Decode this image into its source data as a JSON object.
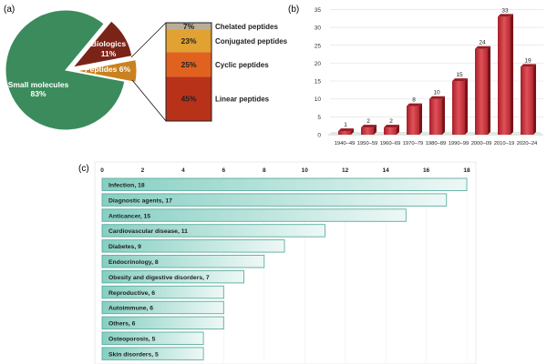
{
  "chart_data": [
    {
      "panel": "(a)",
      "type": "pie",
      "slices": [
        {
          "label": "Small molecules",
          "value": 83,
          "value_label": "83%",
          "color": "#3b8b5c"
        },
        {
          "label": "Biologics",
          "value": 11,
          "value_label": "11%",
          "color": "#7a2418"
        },
        {
          "label": "Peptides",
          "value": 6,
          "value_label": "6%",
          "color": "#c9821f"
        }
      ],
      "breakdown": {
        "type": "stacked-bar",
        "of": "Peptides",
        "segments": [
          {
            "label": "Chelated peptides",
            "value": 7,
            "value_label": "7%",
            "color": "#b9ad97"
          },
          {
            "label": "Conjugated peptides",
            "value": 23,
            "value_label": "23%",
            "color": "#e1a232"
          },
          {
            "label": "Cyclic peptides",
            "value": 25,
            "value_label": "25%",
            "color": "#e1621f"
          },
          {
            "label": "Linear peptides",
            "value": 45,
            "value_label": "45%",
            "color": "#b8321a"
          }
        ]
      }
    },
    {
      "panel": "(b)",
      "type": "bar",
      "categories": [
        "1940–49",
        "1950–59",
        "1960–69",
        "1970–79",
        "1980–89",
        "1990–99",
        "2000–09",
        "2010–19",
        "2020–24"
      ],
      "values": [
        1,
        2,
        2,
        8,
        10,
        15,
        24,
        33,
        19
      ],
      "ylim": [
        0,
        35
      ],
      "yticks": [
        0,
        5,
        10,
        15,
        20,
        25,
        30,
        35
      ],
      "grid": true,
      "color": "#c8323a",
      "xlabel": "",
      "ylabel": "",
      "title": ""
    },
    {
      "panel": "(c)",
      "type": "bar",
      "orientation": "horizontal",
      "categories": [
        "Infection",
        "Diagnostic agents",
        "Anticancer",
        "Cardiovascular disease",
        "Diabetes",
        "Endocrinology",
        "Obesity and digestive disorders",
        "Reproductive",
        "Autoimmune",
        "Others",
        "Osteoporosis",
        "Skin disorders"
      ],
      "values": [
        18,
        17,
        15,
        11,
        9,
        8,
        7,
        6,
        6,
        6,
        5,
        5
      ],
      "xlim": [
        0,
        18
      ],
      "xticks": [
        0,
        2,
        4,
        6,
        8,
        10,
        12,
        14,
        16,
        18
      ],
      "grid": true,
      "color": "#7fcabd",
      "xlabel": "",
      "ylabel": "",
      "title": ""
    }
  ]
}
